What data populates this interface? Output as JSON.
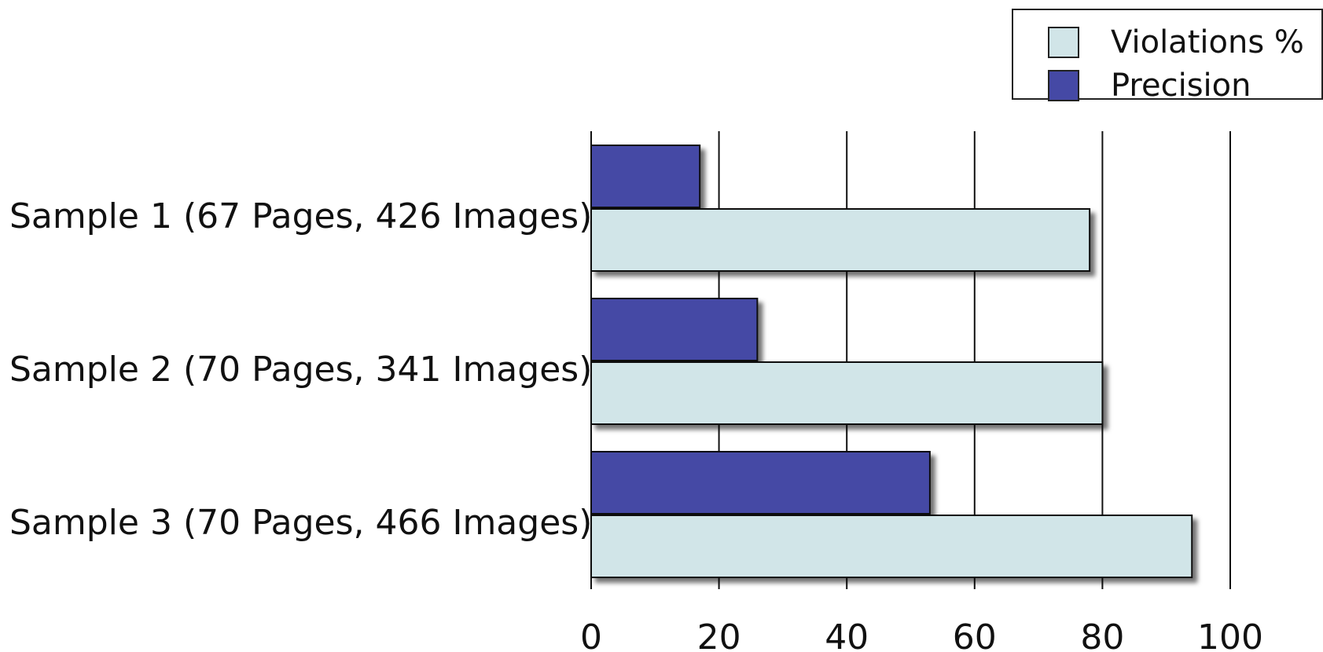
{
  "chart_data": {
    "type": "bar",
    "orientation": "horizontal",
    "categories": [
      "Sample 1 (67 Pages, 426 Images)",
      "Sample 2 (70 Pages, 341 Images)",
      "Sample 3 (70 Pages, 466 Images)"
    ],
    "series": [
      {
        "name": "Violations %",
        "values": [
          78,
          80,
          94
        ],
        "color": "#d1e5e8"
      },
      {
        "name": "Precision",
        "values": [
          17,
          26,
          53
        ],
        "color": "#4549a5"
      }
    ],
    "xlim": [
      0,
      100
    ],
    "xticks": [
      "0",
      "20",
      "40",
      "60",
      "80",
      "100"
    ],
    "grid": true,
    "legend_position": "top-right",
    "title": "",
    "xlabel": "",
    "ylabel": ""
  }
}
